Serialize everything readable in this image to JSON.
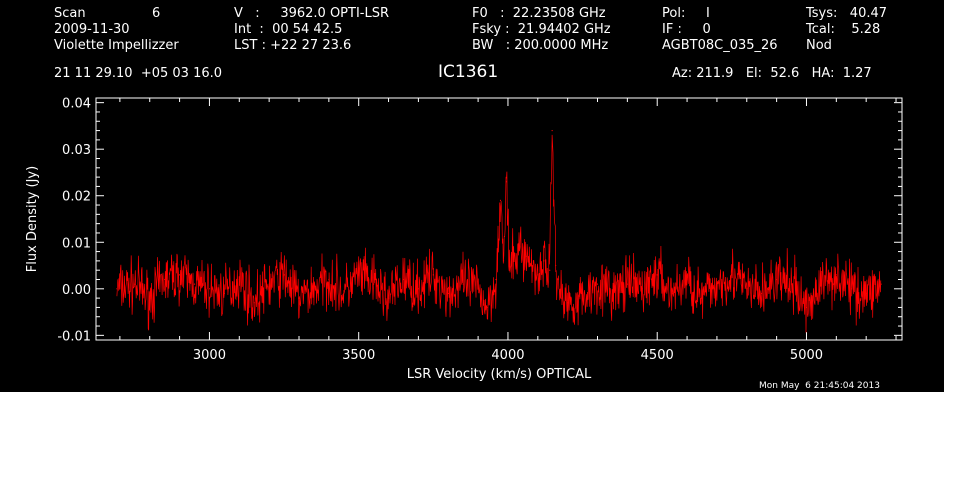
{
  "header": {
    "scan_label": "Scan",
    "scan_number": "6",
    "date": "2009-11-30",
    "observer": "Violette Impellizzer",
    "velocity": "V   :     3962.0 OPTI-LSR",
    "integration": "Int  :  00 54 42.5",
    "lst": "LST : +22 27 23.6",
    "f0": "F0   :  22.23508 GHz",
    "fsky": "Fsky :  21.94402 GHz",
    "bandwidth": "BW   : 200.0000 MHz",
    "pol": "Pol:     I",
    "if": "IF :     0",
    "project": "AGBT08C_035_26",
    "tsys": "Tsys:   40.47",
    "tcal": "Tcal:    5.28",
    "mode": "Nod",
    "coordinates": "21 11 29.10  +05 03 16.0",
    "source": "IC1361",
    "pointing": "Az: 211.9   El:  52.6   HA:  1.27",
    "timestamp": "Mon May  6 21:45:04 2013"
  },
  "colors": {
    "background": "#000000",
    "foreground": "#ffffff",
    "spectrum": "#ff0000",
    "page": "#ffffff"
  },
  "chart_data": {
    "type": "line",
    "title": "IC1361",
    "xlabel": "LSR Velocity (km/s) OPTICAL",
    "ylabel": "Flux Density (Jy)",
    "xlim": [
      2620,
      5320
    ],
    "ylim": [
      -0.011,
      0.041
    ],
    "x_ticks": [
      3000,
      3500,
      4000,
      4500,
      5000
    ],
    "x_tick_labels": [
      "3000",
      "3500",
      "4000",
      "4500",
      "5000"
    ],
    "y_ticks": [
      -0.01,
      0.0,
      0.01,
      0.02,
      0.03,
      0.04
    ],
    "y_tick_labels": [
      "-0.01",
      "0.00",
      "0.01",
      "0.02",
      "0.03",
      "0.04"
    ],
    "grid": false,
    "series": [
      {
        "color": "#ff0000",
        "x": [
          2690,
          2750,
          2800,
          2850,
          2900,
          2950,
          3000,
          3050,
          3100,
          3150,
          3200,
          3250,
          3300,
          3350,
          3400,
          3450,
          3500,
          3550,
          3600,
          3650,
          3700,
          3750,
          3800,
          3850,
          3900,
          3930,
          3960,
          3975,
          3985,
          3995,
          4005,
          4020,
          4040,
          4060,
          4080,
          4100,
          4120,
          4140,
          4148,
          4160,
          4180,
          4200,
          4250,
          4300,
          4350,
          4400,
          4450,
          4500,
          4550,
          4600,
          4650,
          4700,
          4750,
          4800,
          4850,
          4900,
          4950,
          5000,
          5050,
          5100,
          5150,
          5200,
          5250
        ],
        "y": [
          0.0,
          0.001,
          -0.002,
          0.002,
          0.003,
          0.001,
          0.0,
          -0.001,
          0.002,
          -0.003,
          0.001,
          0.003,
          -0.002,
          0.0,
          0.002,
          -0.001,
          0.003,
          0.001,
          -0.002,
          0.002,
          0.0,
          0.003,
          -0.001,
          0.001,
          0.0,
          -0.004,
          0.002,
          0.019,
          0.006,
          0.023,
          0.004,
          0.006,
          0.009,
          0.007,
          0.005,
          0.003,
          0.006,
          0.004,
          0.034,
          0.005,
          -0.002,
          -0.003,
          -0.002,
          0.001,
          -0.001,
          0.001,
          0.0,
          0.003,
          -0.001,
          0.002,
          -0.002,
          0.001,
          0.003,
          0.0,
          -0.001,
          0.002,
          0.001,
          -0.004,
          0.001,
          0.003,
          0.0,
          -0.001,
          0.001
        ]
      }
    ]
  }
}
